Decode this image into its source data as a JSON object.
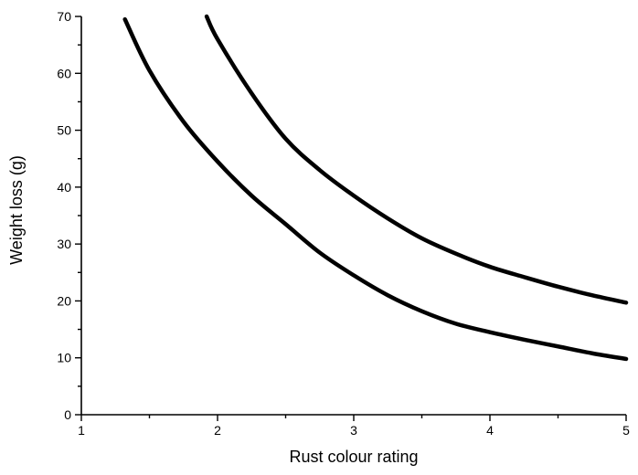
{
  "chart_data": {
    "type": "line",
    "xlabel": "Rust colour rating",
    "ylabel": "Weight loss (g)",
    "xlim": [
      1,
      5
    ],
    "ylim": [
      0,
      70
    ],
    "x_ticks": [
      "1",
      "2",
      "3",
      "4",
      "5"
    ],
    "y_ticks": [
      "0",
      "10",
      "20",
      "30",
      "40",
      "50",
      "60",
      "70"
    ],
    "grid": false,
    "series": [
      {
        "x": [
          1.32,
          1.5,
          1.75,
          2.0,
          2.25,
          2.5,
          2.75,
          3.0,
          3.25,
          3.5,
          3.75,
          4.0,
          4.25,
          4.5,
          4.75,
          5.0
        ],
        "values": [
          69.5,
          60.5,
          51.5,
          44.5,
          38.5,
          33.5,
          28.5,
          24.5,
          21.0,
          18.2,
          16.0,
          14.5,
          13.2,
          12.0,
          10.8,
          9.8
        ]
      },
      {
        "x": [
          1.92,
          2.0,
          2.25,
          2.5,
          2.75,
          3.0,
          3.25,
          3.5,
          3.75,
          4.0,
          4.25,
          4.5,
          4.75,
          5.0
        ],
        "values": [
          70.0,
          66.0,
          56.5,
          48.5,
          43.0,
          38.5,
          34.5,
          31.0,
          28.3,
          26.0,
          24.2,
          22.5,
          21.0,
          19.7
        ]
      }
    ],
    "colors": {
      "line": "#000000",
      "axis": "#000000",
      "background": "#ffffff"
    }
  }
}
